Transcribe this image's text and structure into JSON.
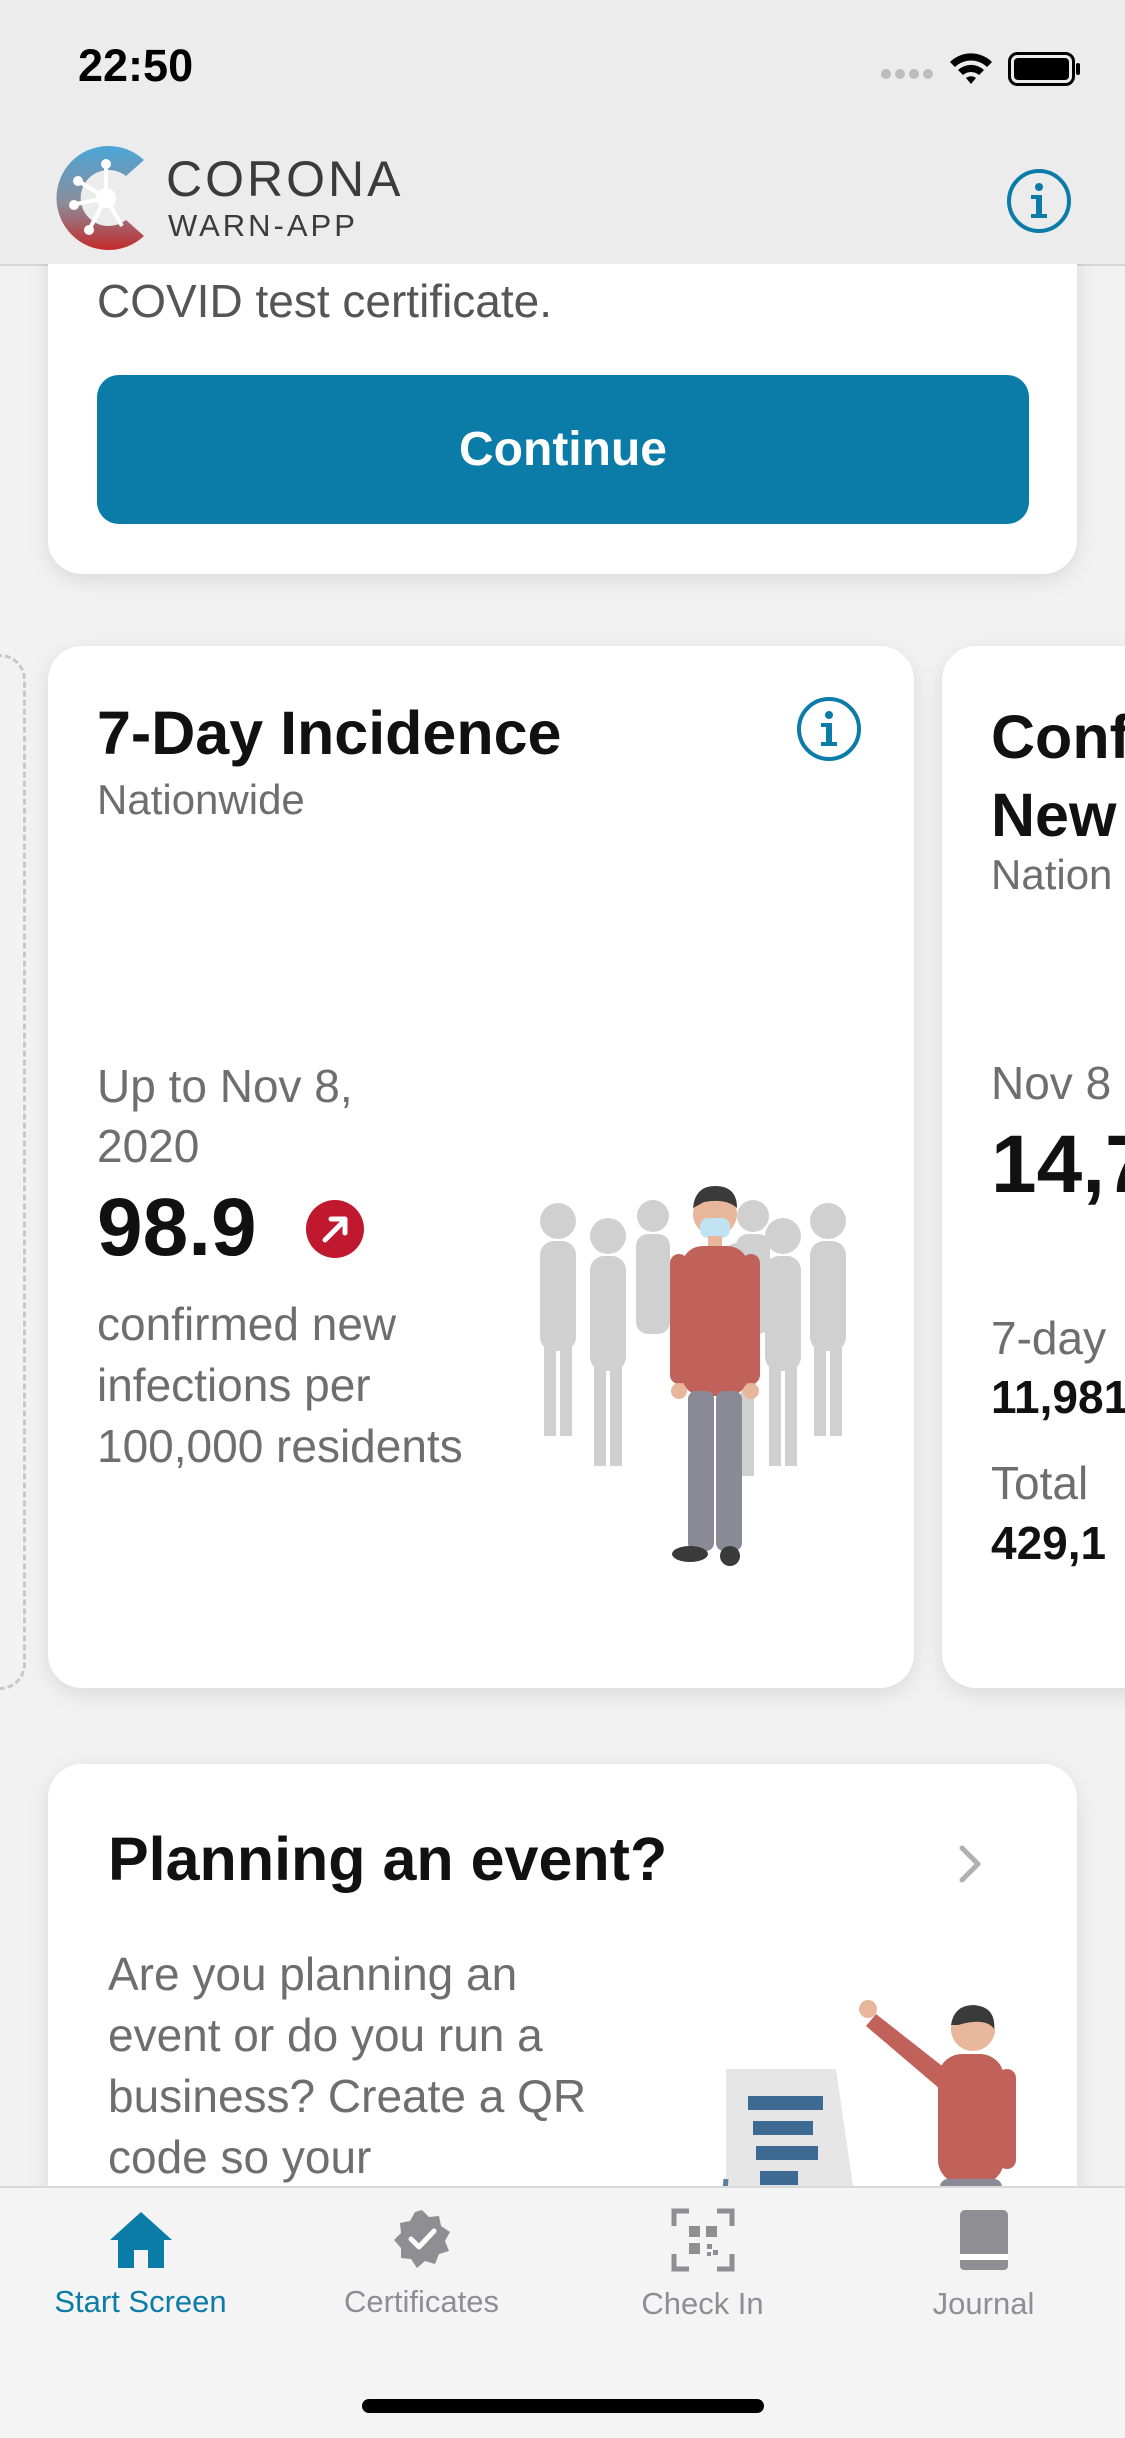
{
  "status_bar": {
    "time": "22:50"
  },
  "header": {
    "brand_line1": "CORONA",
    "brand_line2": "WARN-APP"
  },
  "certificate_card": {
    "text": "COVID test certificate.",
    "button_label": "Continue"
  },
  "incidence_card": {
    "title": "7-Day Incidence",
    "subtitle": "Nationwide",
    "date": "Up to Nov 8, 2020",
    "value": "98.9",
    "trend": "up",
    "description": "confirmed new infections per 100,000 residents"
  },
  "new_infections_card": {
    "title_line1": "Conf",
    "title_line2": "New",
    "subtitle": "Nation",
    "date": "Nov 8",
    "value": "14,7",
    "label1": "7-day",
    "value1": "11,981",
    "label2": "Total",
    "value2": "429,1"
  },
  "event_card": {
    "title": "Planning an event?",
    "description": "Are you planning an event or do you run a business? Create a QR code so your"
  },
  "tabs": [
    {
      "label": "Start Screen",
      "icon": "home-icon",
      "active": true
    },
    {
      "label": "Certificates",
      "icon": "certificate-badge-icon",
      "active": false
    },
    {
      "label": "Check In",
      "icon": "qr-scan-icon",
      "active": false
    },
    {
      "label": "Journal",
      "icon": "book-icon",
      "active": false
    }
  ],
  "colors": {
    "accent": "#0b7ba7",
    "trend_red": "#c0182f",
    "inactive": "#8e8e93"
  }
}
